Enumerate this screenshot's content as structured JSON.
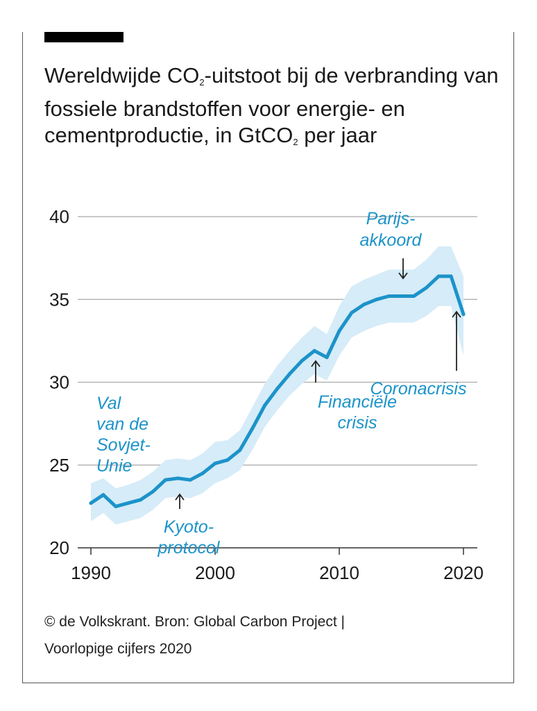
{
  "title_parts": {
    "t1": "Wereldwijde CO",
    "s1": "2",
    "t2": "-uitstoot bij de verbranding van fossiele brandstoffen voor energie- en cementproductie, in GtCO",
    "s2": "2",
    "t3": " per jaar"
  },
  "source": {
    "line1": "© de Volkskrant. Bron: Global Carbon Project |",
    "line2": "Voorlopige cijfers 2020"
  },
  "colors": {
    "line": "#1c93c9",
    "band": "#d6ecf8",
    "grid": "#b5b5b5",
    "annotation": "#1c93c9"
  },
  "chart_data": {
    "type": "line",
    "title": "Wereldwijde CO2-uitstoot bij de verbranding van fossiele brandstoffen voor energie- en cementproductie, in GtCO2 per jaar",
    "xlabel": "",
    "ylabel": "",
    "xlim": [
      1990,
      2021
    ],
    "ylim": [
      20,
      40
    ],
    "xticks": [
      1990,
      2000,
      2010,
      2020
    ],
    "yticks": [
      20,
      25,
      30,
      35,
      40
    ],
    "grid": true,
    "x": [
      1990,
      1991,
      1992,
      1993,
      1994,
      1995,
      1996,
      1997,
      1998,
      1999,
      2000,
      2001,
      2002,
      2003,
      2004,
      2005,
      2006,
      2007,
      2008,
      2009,
      2010,
      2011,
      2012,
      2013,
      2014,
      2015,
      2016,
      2017,
      2018,
      2019,
      2020
    ],
    "series": [
      {
        "values": [
          22.7,
          23.2,
          22.5,
          22.7,
          22.9,
          23.4,
          24.1,
          24.2,
          24.1,
          24.5,
          25.1,
          25.3,
          25.9,
          27.2,
          28.6,
          29.6,
          30.5,
          31.3,
          31.9,
          31.5,
          33.1,
          34.2,
          34.7,
          35.0,
          35.2,
          35.2,
          35.2,
          35.7,
          36.4,
          36.4,
          34.1
        ],
        "lower": [
          21.6,
          22.1,
          21.4,
          21.6,
          21.8,
          22.3,
          23.0,
          23.1,
          23.0,
          23.3,
          23.9,
          24.2,
          24.7,
          25.9,
          27.3,
          28.3,
          29.2,
          29.9,
          30.5,
          30.1,
          31.6,
          32.7,
          33.1,
          33.4,
          33.6,
          33.6,
          33.6,
          34.0,
          34.6,
          34.6,
          31.6
        ],
        "upper": [
          23.9,
          24.2,
          23.6,
          23.8,
          24.1,
          24.6,
          25.3,
          25.4,
          25.3,
          25.7,
          26.4,
          26.5,
          27.1,
          28.5,
          29.9,
          31.0,
          31.9,
          32.7,
          33.4,
          32.9,
          34.6,
          35.8,
          36.2,
          36.5,
          36.8,
          36.8,
          36.8,
          37.4,
          38.2,
          38.2,
          36.4
        ]
      }
    ],
    "annotations": [
      {
        "lines": [
          "Val",
          "van de",
          "Sovjet-",
          "Unie"
        ]
      },
      {
        "lines": [
          "Kyoto-",
          "protocol"
        ]
      },
      {
        "lines": [
          "Financiële",
          "crisis"
        ]
      },
      {
        "lines": [
          "Parijs-",
          "akkoord"
        ]
      },
      {
        "lines": [
          "Coronacrisis"
        ]
      }
    ]
  }
}
